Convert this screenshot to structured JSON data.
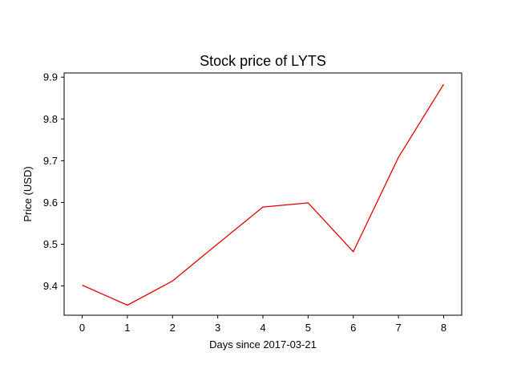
{
  "chart_data": {
    "type": "line",
    "title": "Stock price of LYTS",
    "xlabel": "Days since 2017-03-21",
    "ylabel": "Price (USD)",
    "x": [
      0,
      1,
      2,
      3,
      4,
      5,
      6,
      7,
      8
    ],
    "xticks": [
      0,
      1,
      2,
      3,
      4,
      5,
      6,
      7,
      8
    ],
    "yticks": [
      9.4,
      9.5,
      9.6,
      9.7,
      9.8,
      9.9
    ],
    "xlim": [
      -0.4,
      8.4
    ],
    "ylim": [
      9.33,
      9.91
    ],
    "grid": false,
    "series": [
      {
        "color": "#e50000",
        "values": [
          9.402,
          9.354,
          9.412,
          9.501,
          9.589,
          9.599,
          9.482,
          9.708,
          9.883
        ]
      }
    ]
  }
}
